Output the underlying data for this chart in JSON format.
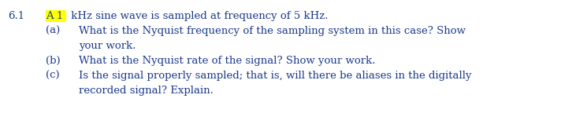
{
  "background_color": "#ffffff",
  "highlight_color": "#FFFF00",
  "text_color": "#1a3a8a",
  "label_color": "#1a3a8a",
  "problem_number": "6.1",
  "highlighted_text": "A 1",
  "intro_line": " kHz sine wave is sampled at frequency of 5 kHz.",
  "parts": [
    {
      "label": "(a)",
      "lines": [
        "What is the Nyquist frequency of the sampling system in this case? Show",
        "your work."
      ]
    },
    {
      "label": "(b)",
      "lines": [
        "What is the Nyquist rate of the signal? Show your work."
      ]
    },
    {
      "label": "(c)",
      "lines": [
        "Is the signal properly sampled; that is, will there be aliases in the digitally",
        "recorded signal? Explain."
      ]
    }
  ],
  "font_size": 9.5,
  "font_family": "DejaVu Serif",
  "fig_width": 7.12,
  "fig_height": 1.58,
  "dpi": 100
}
